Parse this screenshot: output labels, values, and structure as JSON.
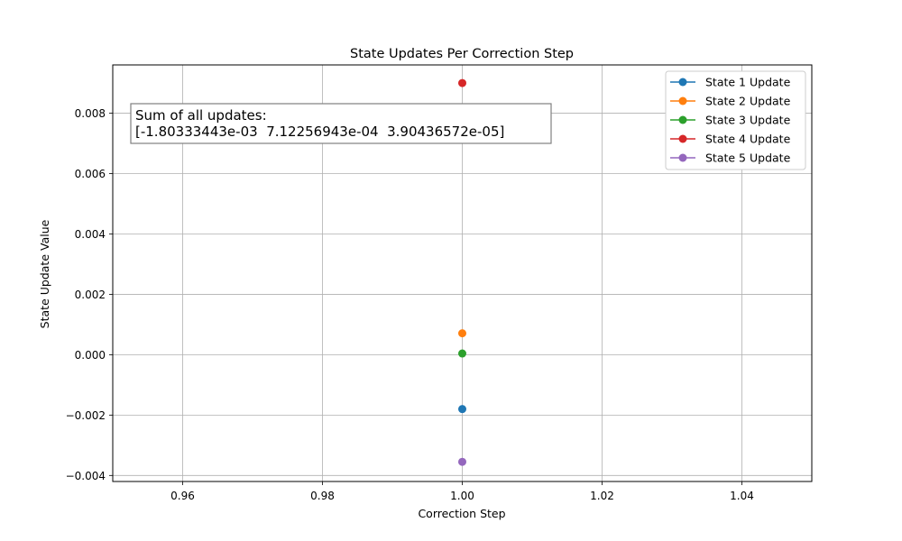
{
  "chart_data": {
    "type": "line",
    "title": "State Updates Per Correction Step",
    "xlabel": "Correction Step",
    "ylabel": "State Update Value",
    "xlim": [
      0.95,
      1.05
    ],
    "ylim": [
      -0.0042,
      0.0096
    ],
    "grid": true,
    "legend_position": "top-right",
    "x_ticks": [
      {
        "value": 0.96,
        "label": "0.96"
      },
      {
        "value": 0.98,
        "label": "0.98"
      },
      {
        "value": 1.0,
        "label": "1.00"
      },
      {
        "value": 1.02,
        "label": "1.02"
      },
      {
        "value": 1.04,
        "label": "1.04"
      }
    ],
    "y_ticks": [
      {
        "value": -0.004,
        "label": "−0.004"
      },
      {
        "value": -0.002,
        "label": "−0.002"
      },
      {
        "value": 0.0,
        "label": "0.000"
      },
      {
        "value": 0.002,
        "label": "0.002"
      },
      {
        "value": 0.004,
        "label": "0.004"
      },
      {
        "value": 0.006,
        "label": "0.006"
      },
      {
        "value": 0.008,
        "label": "0.008"
      }
    ],
    "series": [
      {
        "name": "State 1 Update",
        "color": "#1f77b4",
        "x": [
          1.0
        ],
        "values": [
          -0.0018
        ]
      },
      {
        "name": "State 2 Update",
        "color": "#ff7f0e",
        "x": [
          1.0
        ],
        "values": [
          0.00071
        ]
      },
      {
        "name": "State 3 Update",
        "color": "#2ca02c",
        "x": [
          1.0
        ],
        "values": [
          4e-05
        ]
      },
      {
        "name": "State 4 Update",
        "color": "#d62728",
        "x": [
          1.0
        ],
        "values": [
          0.009
        ]
      },
      {
        "name": "State 5 Update",
        "color": "#9467bd",
        "x": [
          1.0
        ],
        "values": [
          -0.00355
        ]
      }
    ],
    "annotation": {
      "line1": "Sum of all updates:",
      "line2": "[-1.80333443e-03  7.12256943e-04  3.90436572e-05]"
    }
  }
}
